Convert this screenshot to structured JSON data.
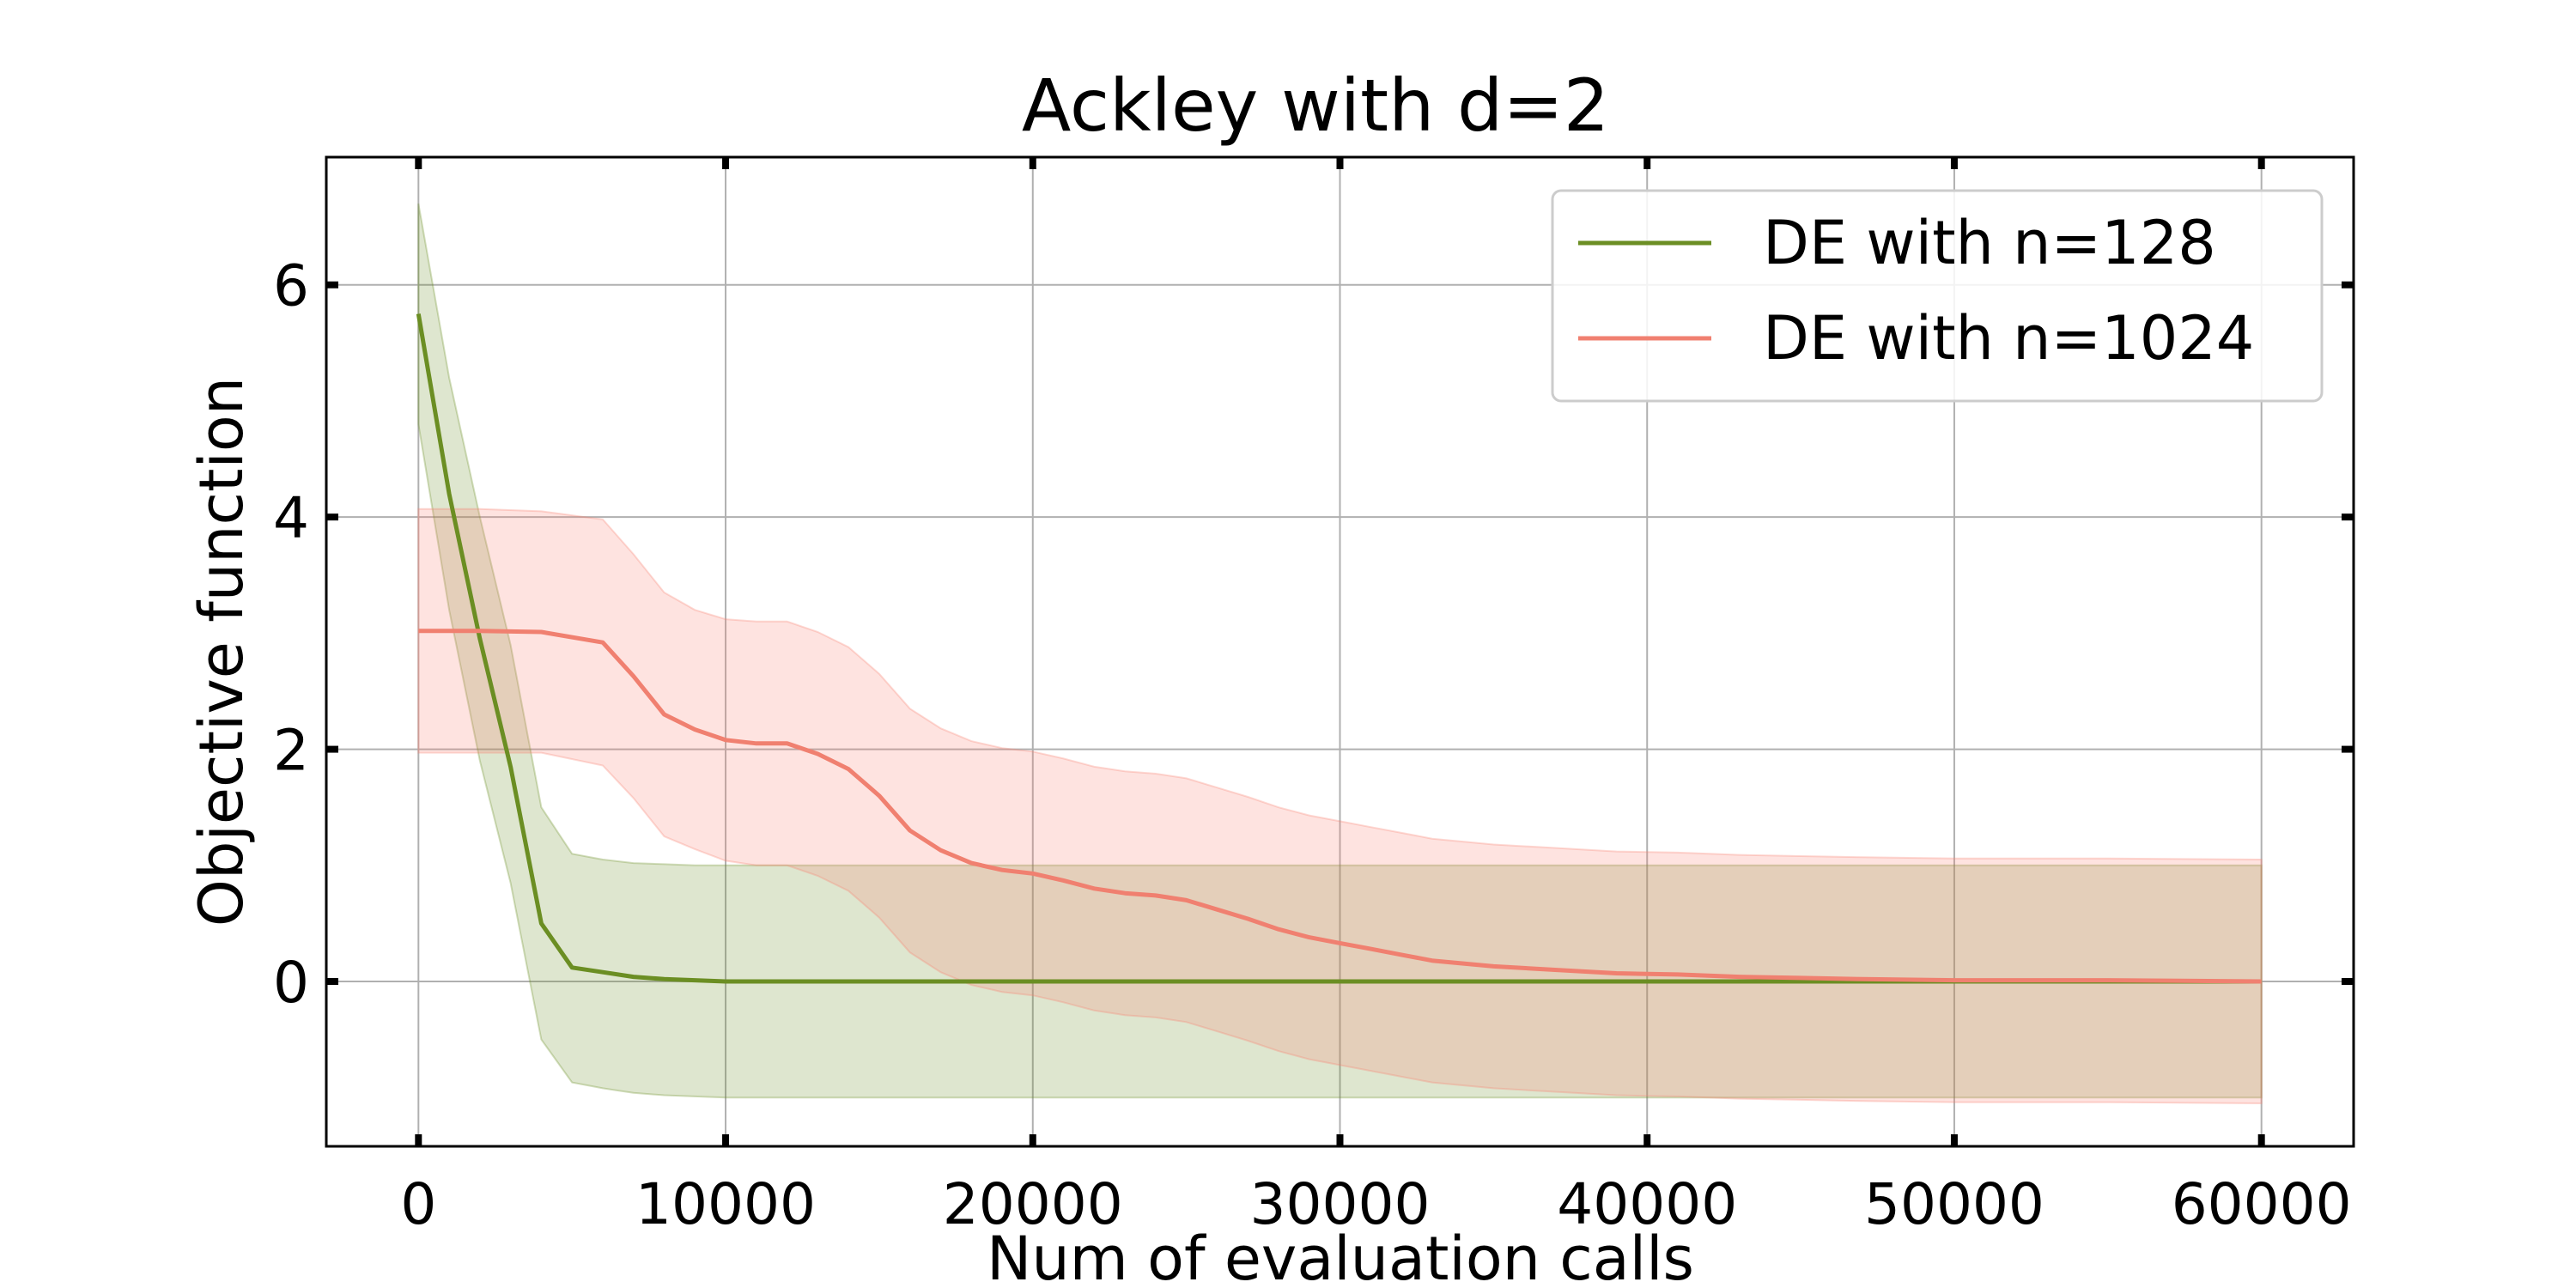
{
  "chart_data": {
    "type": "line",
    "title": "Ackley with d=2",
    "xlabel": "Num of evaluation calls",
    "ylabel": "Objective function",
    "xlim": [
      -3000,
      63000
    ],
    "ylim": [
      -1.42,
      7.1
    ],
    "xticks": [
      0,
      10000,
      20000,
      30000,
      40000,
      50000,
      60000
    ],
    "yticks": [
      0,
      2,
      4,
      6
    ],
    "grid": true,
    "legend_position": "top-right",
    "series": [
      {
        "name": "DE with n=128",
        "color": "#6b8e23",
        "band_color": "#6b8e23",
        "band_opacity": 0.22,
        "x": [
          0,
          1000,
          2000,
          3000,
          4000,
          5000,
          6000,
          7000,
          8000,
          9000,
          10000,
          12000,
          14000,
          16000,
          18000,
          20000,
          30000,
          40000,
          50000,
          60000
        ],
        "y": [
          5.75,
          4.2,
          2.95,
          1.85,
          0.5,
          0.12,
          0.08,
          0.04,
          0.02,
          0.01,
          0.0,
          0.0,
          0.0,
          0.0,
          0.0,
          0.0,
          0.0,
          0.0,
          0.0,
          0.0
        ],
        "upper": [
          6.7,
          5.2,
          4.0,
          2.9,
          1.5,
          1.1,
          1.05,
          1.02,
          1.01,
          1.0,
          1.0,
          1.0,
          1.0,
          1.0,
          1.0,
          1.0,
          1.0,
          1.0,
          1.0,
          1.0
        ],
        "lower": [
          4.8,
          3.2,
          1.9,
          0.85,
          -0.5,
          -0.87,
          -0.92,
          -0.96,
          -0.98,
          -0.99,
          -1.0,
          -1.0,
          -1.0,
          -1.0,
          -1.0,
          -1.0,
          -1.0,
          -1.0,
          -1.0,
          -1.0
        ]
      },
      {
        "name": "DE with n=1024",
        "color": "#f08070",
        "band_color": "#fa8072",
        "band_opacity": 0.22,
        "x": [
          0,
          2000,
          4000,
          6000,
          7000,
          8000,
          9000,
          10000,
          11000,
          12000,
          13000,
          14000,
          15000,
          16000,
          17000,
          18000,
          19000,
          20000,
          21000,
          22000,
          23000,
          24000,
          25000,
          26000,
          27000,
          28000,
          29000,
          30000,
          31000,
          32000,
          33000,
          35000,
          37000,
          39000,
          41000,
          43000,
          45000,
          47000,
          50000,
          55000,
          60000
        ],
        "y": [
          3.02,
          3.02,
          3.01,
          2.92,
          2.63,
          2.3,
          2.17,
          2.08,
          2.05,
          2.05,
          1.96,
          1.83,
          1.6,
          1.3,
          1.13,
          1.02,
          0.96,
          0.93,
          0.87,
          0.8,
          0.76,
          0.74,
          0.7,
          0.62,
          0.54,
          0.45,
          0.38,
          0.33,
          0.28,
          0.23,
          0.18,
          0.13,
          0.1,
          0.07,
          0.06,
          0.04,
          0.03,
          0.02,
          0.01,
          0.01,
          0.0
        ],
        "upper": [
          4.07,
          4.07,
          4.05,
          3.98,
          3.68,
          3.35,
          3.2,
          3.12,
          3.1,
          3.1,
          3.01,
          2.88,
          2.65,
          2.35,
          2.18,
          2.07,
          2.01,
          1.98,
          1.92,
          1.85,
          1.81,
          1.79,
          1.75,
          1.67,
          1.59,
          1.5,
          1.43,
          1.38,
          1.33,
          1.28,
          1.23,
          1.18,
          1.15,
          1.12,
          1.11,
          1.09,
          1.08,
          1.07,
          1.06,
          1.06,
          1.05
        ],
        "lower": [
          1.97,
          1.97,
          1.97,
          1.86,
          1.58,
          1.25,
          1.14,
          1.04,
          1.0,
          1.0,
          0.91,
          0.78,
          0.55,
          0.25,
          0.08,
          -0.03,
          -0.09,
          -0.12,
          -0.18,
          -0.25,
          -0.29,
          -0.31,
          -0.35,
          -0.43,
          -0.51,
          -0.6,
          -0.67,
          -0.72,
          -0.77,
          -0.82,
          -0.87,
          -0.92,
          -0.95,
          -0.98,
          -0.99,
          -1.01,
          -1.02,
          -1.03,
          -1.04,
          -1.04,
          -1.05
        ]
      }
    ]
  }
}
